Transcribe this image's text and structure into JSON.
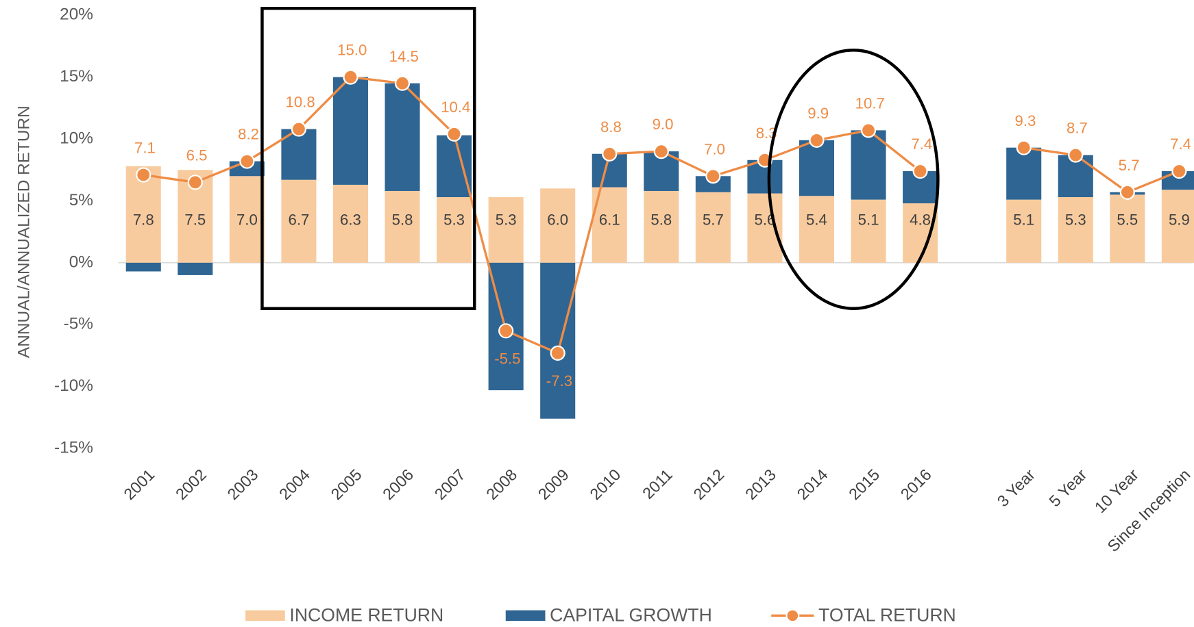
{
  "chart_data": {
    "type": "bar",
    "y_label": "ANNUAL/ANNUALIZED RETURN",
    "categories": [
      "2001",
      "2002",
      "2003",
      "2004",
      "2005",
      "2006",
      "2007",
      "2008",
      "2009",
      "2010",
      "2011",
      "2012",
      "2013",
      "2014",
      "2015",
      "2016",
      null,
      "3 Year",
      "5 Year",
      "10 Year",
      "Since Inception"
    ],
    "series": [
      {
        "name": "INCOME RETURN",
        "color": "#f8cb9e",
        "values": [
          7.8,
          7.5,
          7.0,
          6.7,
          6.3,
          5.8,
          5.3,
          5.3,
          6.0,
          6.1,
          5.8,
          5.7,
          5.6,
          5.4,
          5.1,
          4.8,
          null,
          5.1,
          5.3,
          5.5,
          5.9
        ],
        "value_labels": [
          "7.8",
          "7.5",
          "7.0",
          "6.7",
          "6.3",
          "5.8",
          "5.3",
          "5.3",
          "6.0",
          "6.1",
          "5.8",
          "5.7",
          "5.6",
          "5.4",
          "5.1",
          "4.8",
          null,
          "5.1",
          "5.3",
          "5.5",
          "5.9"
        ]
      },
      {
        "name": "CAPITAL GROWTH",
        "color": "#2f6592",
        "values": [
          -0.7,
          -1.0,
          1.2,
          4.1,
          8.7,
          8.7,
          5.0,
          -10.3,
          -12.6,
          2.7,
          3.2,
          1.3,
          2.7,
          4.5,
          5.6,
          2.6,
          null,
          4.2,
          3.4,
          0.2,
          1.5
        ]
      },
      {
        "name": "TOTAL RETURN",
        "color": "#ee8c46",
        "type": "line",
        "values": [
          7.1,
          6.5,
          8.2,
          10.8,
          15.0,
          14.5,
          10.4,
          -5.5,
          -7.3,
          8.8,
          9.0,
          7.0,
          8.3,
          9.9,
          10.7,
          7.4,
          null,
          9.3,
          8.7,
          5.7,
          7.4
        ],
        "value_labels": [
          "7.1",
          "6.5",
          "8.2",
          "10.8",
          "15.0",
          "14.5",
          "10.4",
          "-5.5",
          "-7.3",
          "8.8",
          "9.0",
          "7.0",
          "8.3",
          "9.9",
          "10.7",
          "7.4",
          null,
          "9.3",
          "8.7",
          "5.7",
          "7.4"
        ]
      }
    ],
    "ylim": [
      -15,
      20
    ],
    "yticks": [
      {
        "value": -15,
        "label": "-15%"
      },
      {
        "value": -10,
        "label": "-10%"
      },
      {
        "value": -5,
        "label": "-5%"
      },
      {
        "value": 0,
        "label": "0%"
      },
      {
        "value": 5,
        "label": "5%"
      },
      {
        "value": 10,
        "label": "10%"
      },
      {
        "value": 15,
        "label": "15%"
      },
      {
        "value": 20,
        "label": "20%"
      }
    ],
    "grid": false
  }
}
